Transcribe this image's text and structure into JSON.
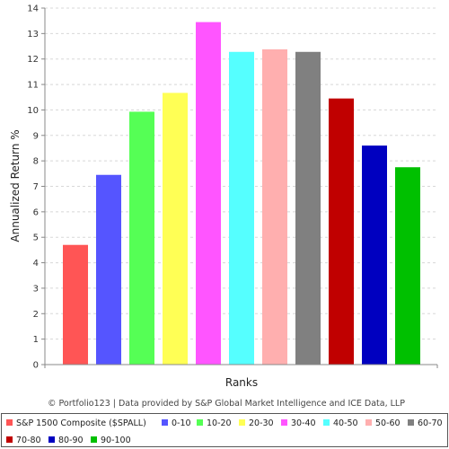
{
  "chart_data": {
    "type": "bar",
    "xlabel": "Ranks",
    "ylabel": "Annualized Return %",
    "ylim": [
      0,
      14
    ],
    "yticks": [
      0,
      1,
      2,
      3,
      4,
      5,
      6,
      7,
      8,
      9,
      10,
      11,
      12,
      13,
      14
    ],
    "grid": true,
    "legend_position": "bottom",
    "credit": "© Portfolio123 | Data provided by S&P Global Market Intelligence and ICE Data, LLP",
    "series": [
      {
        "name": "S&P 1500 Composite ($SPALL)",
        "value": 4.7,
        "color": "#ff5555"
      },
      {
        "name": "0-10",
        "value": 7.45,
        "color": "#5555ff"
      },
      {
        "name": "10-20",
        "value": 9.93,
        "color": "#55ff55"
      },
      {
        "name": "20-30",
        "value": 10.67,
        "color": "#ffff55"
      },
      {
        "name": "30-40",
        "value": 13.45,
        "color": "#ff55ff"
      },
      {
        "name": "40-50",
        "value": 12.28,
        "color": "#55ffff"
      },
      {
        "name": "50-60",
        "value": 12.38,
        "color": "#ffafaf"
      },
      {
        "name": "60-70",
        "value": 12.28,
        "color": "#808080"
      },
      {
        "name": "70-80",
        "value": 10.45,
        "color": "#c00000"
      },
      {
        "name": "80-90",
        "value": 8.6,
        "color": "#0000c0"
      },
      {
        "name": "90-100",
        "value": 7.75,
        "color": "#00c000"
      }
    ]
  }
}
